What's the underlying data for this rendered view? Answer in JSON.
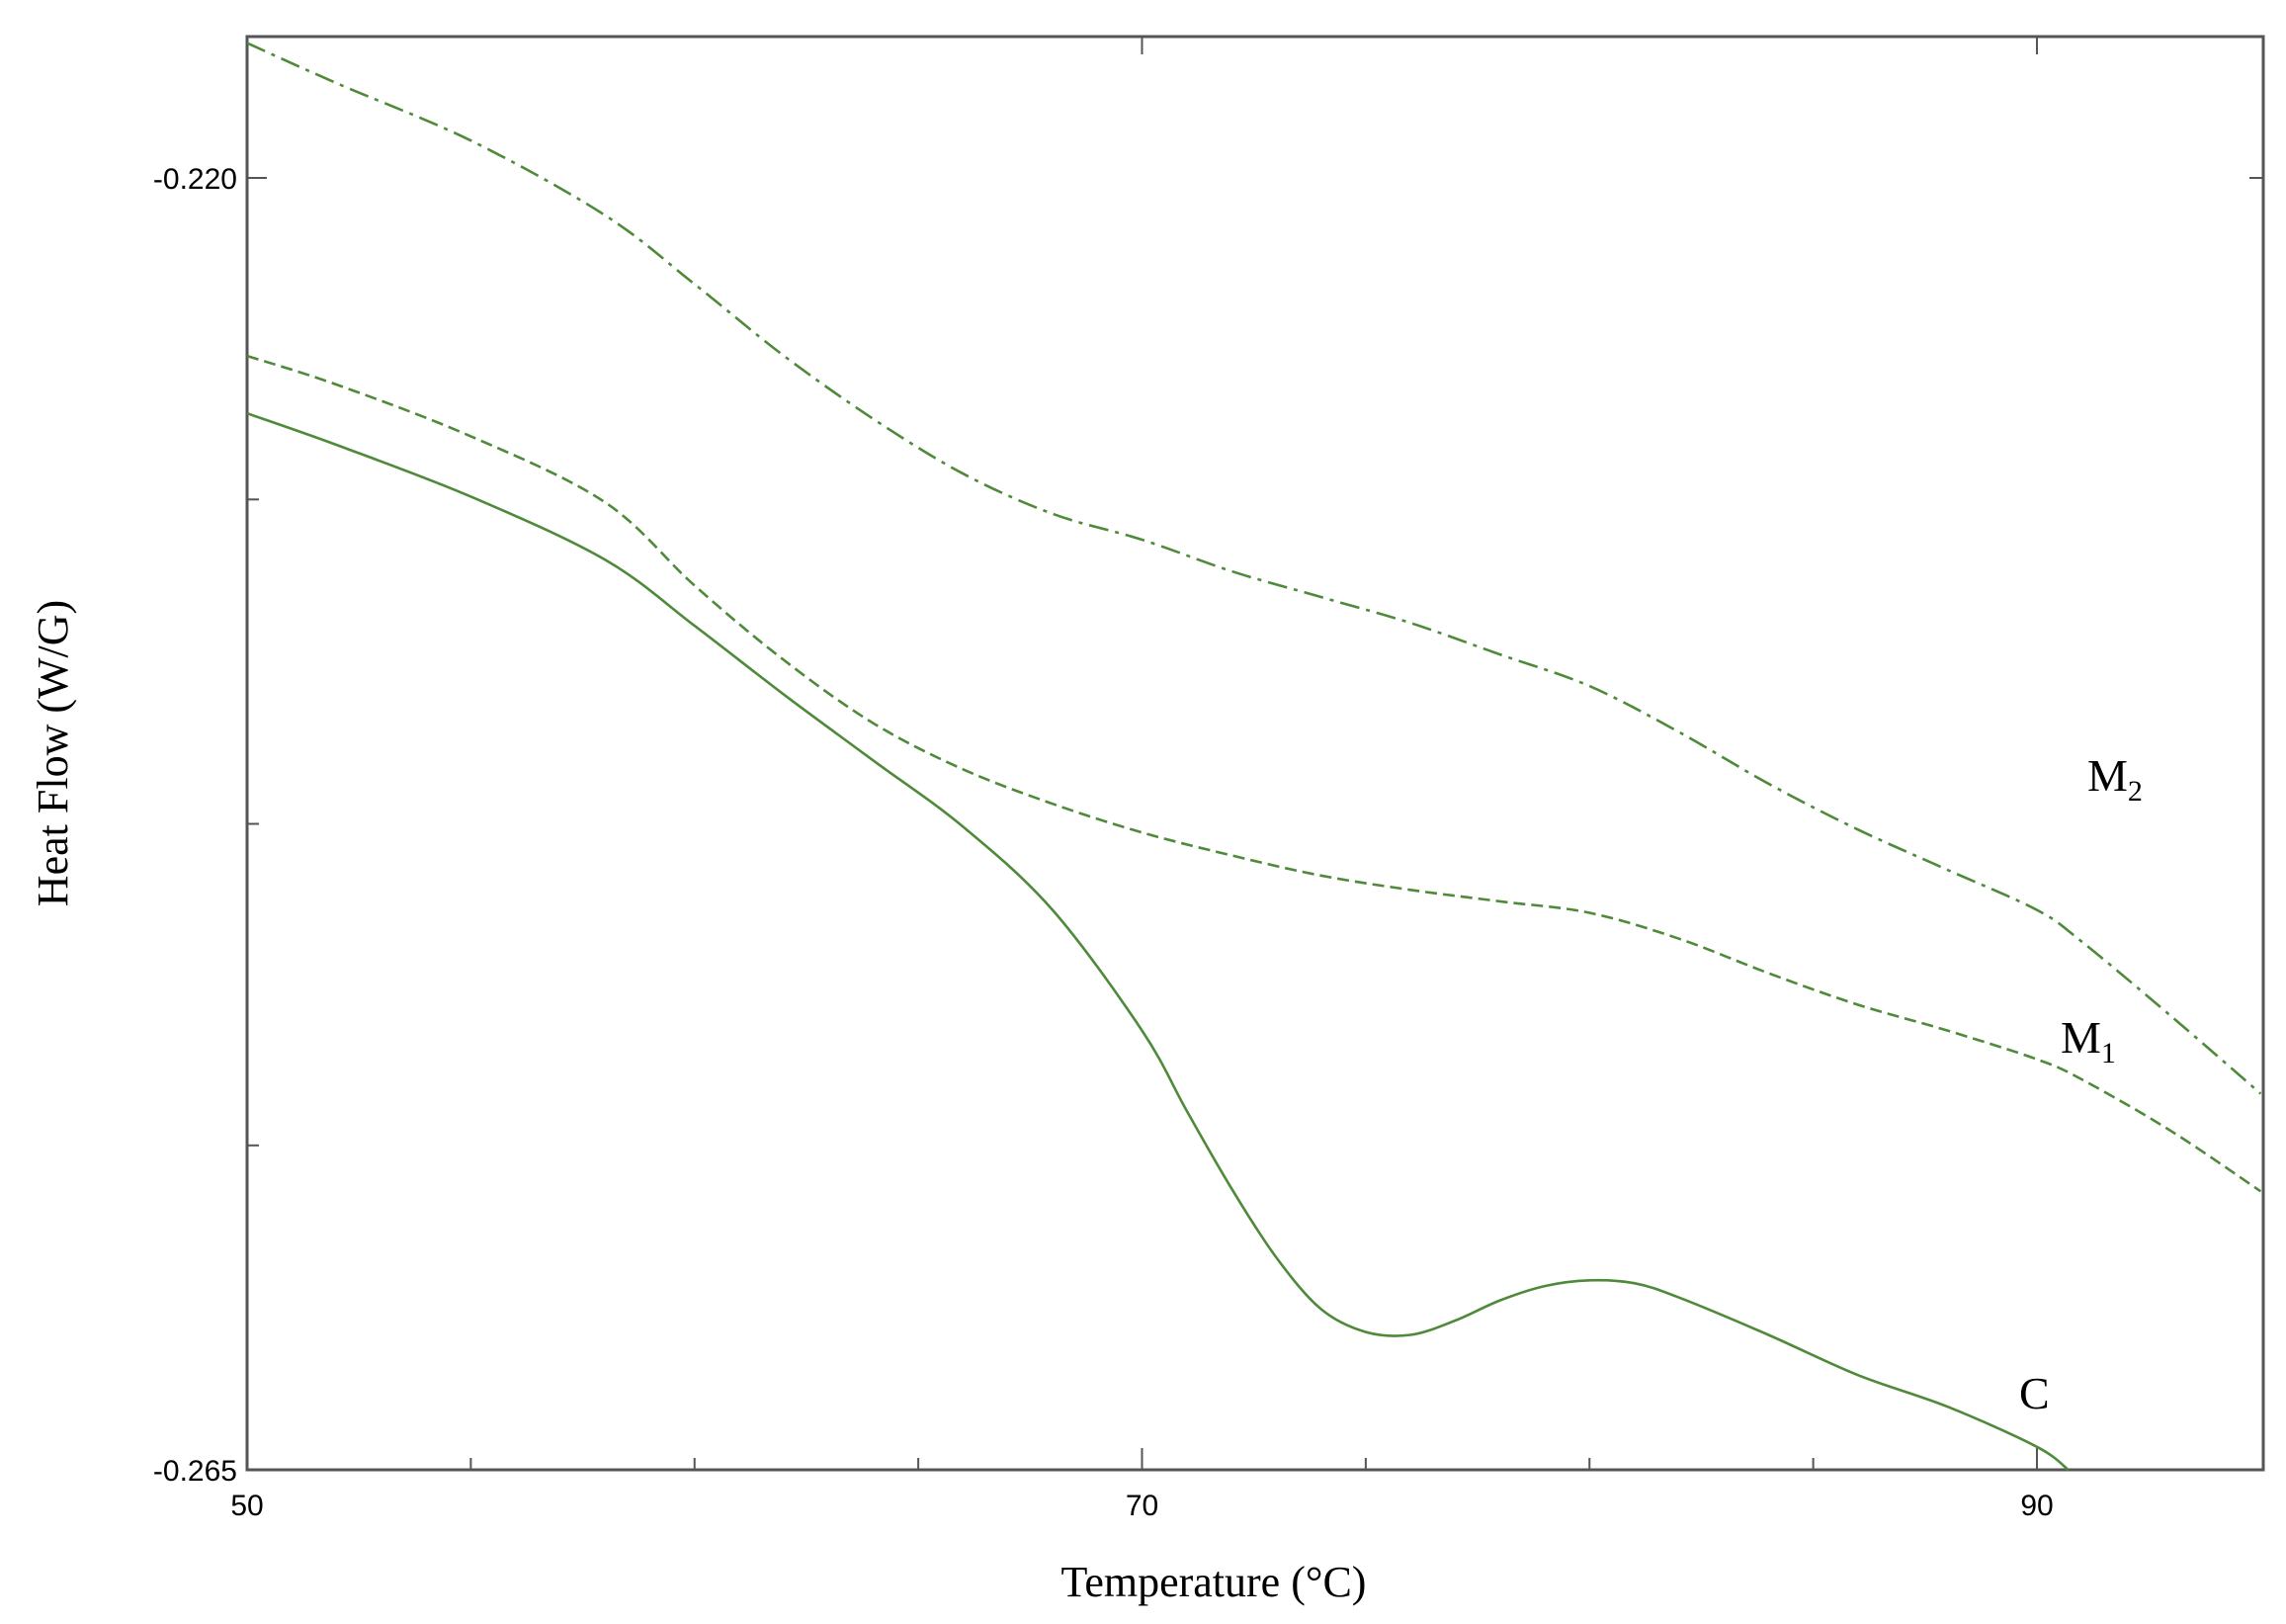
{
  "chart_data": {
    "type": "line",
    "title": "",
    "xlabel": "Temperature (°C)",
    "ylabel": "Heat Flow (W/G)",
    "xlim": [
      50,
      95
    ],
    "ylim": [
      -0.265,
      -0.2153
    ],
    "x_ticks": [
      {
        "value": 50,
        "label": "50"
      },
      {
        "value": 70,
        "label": "70"
      },
      {
        "value": 90,
        "label": "90"
      }
    ],
    "x_minor_ticks": [
      55,
      60,
      65,
      75,
      80,
      85
    ],
    "y_ticks": [
      {
        "value": -0.22,
        "label": "-0.220"
      },
      {
        "value": -0.265,
        "label": "-0.265"
      }
    ],
    "y_minor_ticks": [
      -0.2312,
      -0.2425,
      -0.2537
    ],
    "grid": false,
    "colors": {
      "line": "#4f8a3a",
      "frame": "#555555",
      "text": "#000000"
    },
    "series": [
      {
        "name": "M",
        "sub": "2",
        "dash": "dash-dot",
        "x": [
          50,
          52,
          55,
          58,
          60,
          62,
          64,
          66,
          68,
          70,
          72,
          74,
          76,
          78,
          80,
          82,
          84,
          86,
          88,
          90,
          91,
          93,
          95
        ],
        "y": [
          -0.2153,
          -0.2167,
          -0.2187,
          -0.2213,
          -0.2237,
          -0.2262,
          -0.2284,
          -0.2303,
          -0.2317,
          -0.2326,
          -0.2337,
          -0.2346,
          -0.2355,
          -0.2366,
          -0.2377,
          -0.2393,
          -0.2411,
          -0.2427,
          -0.2441,
          -0.2455,
          -0.2466,
          -0.2492,
          -0.2519
        ]
      },
      {
        "name": "M",
        "sub": "1",
        "dash": "dashed",
        "x": [
          50,
          52,
          55,
          58,
          60,
          62,
          64,
          66,
          68,
          70,
          72,
          74,
          76,
          78,
          80,
          82,
          84,
          86,
          88,
          90,
          91,
          93,
          95
        ],
        "y": [
          -0.2262,
          -0.2272,
          -0.229,
          -0.2313,
          -0.2342,
          -0.2368,
          -0.239,
          -0.2406,
          -0.2418,
          -0.2428,
          -0.2436,
          -0.2443,
          -0.2448,
          -0.2452,
          -0.2456,
          -0.2465,
          -0.2477,
          -0.2488,
          -0.2497,
          -0.2507,
          -0.2514,
          -0.2532,
          -0.2553
        ]
      },
      {
        "name": "C",
        "sub": "",
        "dash": "solid",
        "x": [
          50,
          52,
          55,
          58,
          60,
          62,
          64,
          66,
          68,
          70,
          71,
          72,
          73,
          74,
          75,
          76,
          77,
          78,
          79,
          80,
          81,
          82,
          84,
          86,
          88,
          90,
          90.7
        ],
        "y": [
          -0.2282,
          -0.2293,
          -0.2311,
          -0.2333,
          -0.2356,
          -0.238,
          -0.2403,
          -0.2426,
          -0.2455,
          -0.2497,
          -0.2525,
          -0.2552,
          -0.2576,
          -0.2594,
          -0.2602,
          -0.2603,
          -0.2598,
          -0.2591,
          -0.2586,
          -0.2584,
          -0.2585,
          -0.259,
          -0.2603,
          -0.2617,
          -0.2628,
          -0.2642,
          -0.265
        ]
      }
    ]
  }
}
